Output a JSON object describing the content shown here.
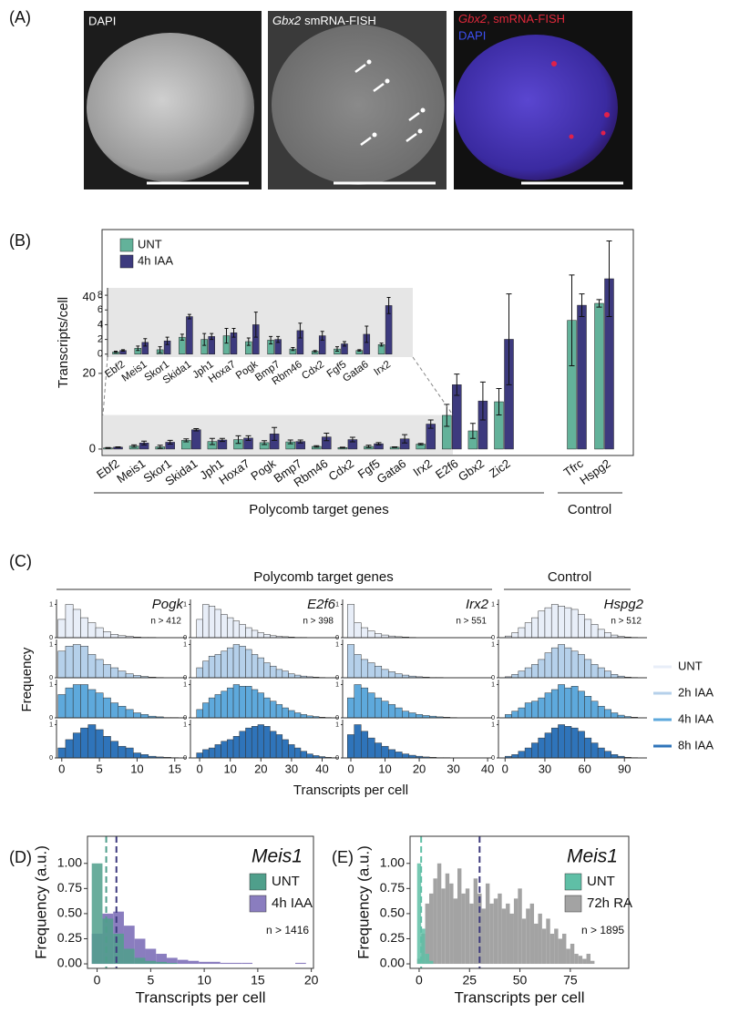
{
  "panel_a": {
    "label": "(A)",
    "images": [
      {
        "caption": "DAPI"
      },
      {
        "gene": "Gbx2",
        "caption": "smRNA-FISH"
      },
      {
        "gene": "Gbx2",
        "caption": ", smRNA-FISH",
        "caption2": "DAPI"
      }
    ]
  },
  "chart_data": [
    {
      "type": "bar",
      "label": "(B)",
      "ylabel": "Transcripts/cell",
      "ylim": [
        -1.7,
        58
      ],
      "yticks": [
        0,
        20,
        40
      ],
      "categories": [
        "Ebf2",
        "Meis1",
        "Skor1",
        "Skida1",
        "Jph1",
        "Hoxa7",
        "Pogk",
        "Bmp7",
        "Rbm46",
        "Cdx2",
        "Fgf5",
        "Gata6",
        "Irx2",
        "E2f6",
        "Gbx2",
        "Zic2",
        "Tfrc",
        "Hspg2"
      ],
      "series": [
        {
          "name": "UNT",
          "color": "#63b29a",
          "values": [
            0.3,
            0.8,
            0.6,
            2.3,
            2.0,
            2.5,
            1.7,
            1.9,
            0.7,
            0.4,
            0.7,
            0.5,
            1.3,
            8.9,
            4.8,
            12.5,
            34,
            38.5
          ],
          "errors": [
            0.1,
            0.3,
            0.4,
            0.4,
            0.8,
            1.0,
            0.5,
            0.5,
            0.2,
            0.1,
            0.3,
            0.1,
            0.2,
            2.9,
            2.0,
            3.5,
            12,
            1
          ]
        },
        {
          "name": "4h IAA",
          "color": "#3d3a7e",
          "values": [
            0.5,
            1.6,
            1.8,
            5.1,
            2.4,
            2.9,
            4.0,
            2.0,
            3.2,
            2.5,
            1.4,
            2.7,
            6.6,
            17.0,
            12.7,
            29,
            38,
            45
          ],
          "errors": [
            0.1,
            0.5,
            0.5,
            0.3,
            0.4,
            0.6,
            1.7,
            0.4,
            1.0,
            0.6,
            0.3,
            1.1,
            1.1,
            2.8,
            5.0,
            12,
            3,
            10
          ]
        }
      ],
      "groups": [
        "Polycomb target genes",
        "Control"
      ],
      "inset": {
        "ylim": [
          -0.4,
          9
        ],
        "yticks": [
          0,
          2,
          4,
          6,
          8
        ],
        "categories": [
          "Ebf2",
          "Meis1",
          "Skor1",
          "Skida1",
          "Jph1",
          "Hoxa7",
          "Pogk",
          "Bmp7",
          "Rbm46",
          "Cdx2",
          "Fgf5",
          "Gata6",
          "Irx2"
        ]
      }
    },
    {
      "type": "histogram-grid",
      "label": "(C)",
      "groups": [
        "Polycomb target genes",
        "Control"
      ],
      "ylabel": "Frequency",
      "xlabel": "Transcripts per cell",
      "ylim": [
        0,
        1.15
      ],
      "yticks": [
        0,
        1
      ],
      "series": [
        {
          "name": "UNT",
          "color": "#e8eef8"
        },
        {
          "name": "2h IAA",
          "color": "#b5d0ea"
        },
        {
          "name": "4h IAA",
          "color": "#5ea9dc"
        },
        {
          "name": "8h IAA",
          "color": "#2f74ba"
        }
      ],
      "panels": [
        {
          "gene": "Pogk",
          "n_label": "n > 412",
          "xlim": [
            -0.7,
            16.6
          ],
          "xticks": [
            0,
            5,
            10,
            15
          ],
          "bins": [
            -0.5,
            0.5,
            1.5,
            2.5,
            3.5,
            4.5,
            5.5,
            6.5,
            7.5,
            8.5,
            9.5,
            10.5,
            11.5,
            12.5,
            13.5,
            14.5,
            15.5
          ],
          "counts": [
            [
              0.55,
              1,
              0.85,
              0.6,
              0.45,
              0.3,
              0.18,
              0.1,
              0.06,
              0.04,
              0.02,
              0.01,
              0.01,
              0,
              0,
              0
            ],
            [
              0.8,
              0.95,
              1,
              0.95,
              0.7,
              0.55,
              0.4,
              0.3,
              0.2,
              0.12,
              0.07,
              0.04,
              0.02,
              0.01,
              0,
              0
            ],
            [
              0.7,
              0.9,
              1,
              1,
              0.85,
              0.75,
              0.6,
              0.45,
              0.35,
              0.25,
              0.15,
              0.1,
              0.05,
              0.03,
              0.01,
              0.01
            ],
            [
              0.3,
              0.55,
              0.75,
              0.9,
              1,
              0.85,
              0.65,
              0.5,
              0.35,
              0.3,
              0.15,
              0.1,
              0.05,
              0.03,
              0.02,
              0.01
            ]
          ]
        },
        {
          "gene": "E2f6",
          "n_label": "n > 398",
          "xlim": [
            -3,
            45.5
          ],
          "xticks": [
            0,
            10,
            20,
            30,
            40
          ],
          "bins": [
            -1,
            1,
            3,
            5,
            7,
            9,
            11,
            13,
            15,
            17,
            19,
            21,
            23,
            25,
            27,
            29,
            31,
            33,
            35,
            37,
            39,
            41,
            43,
            45
          ],
          "counts": [
            [
              0.55,
              1,
              0.95,
              0.85,
              0.7,
              0.6,
              0.5,
              0.4,
              0.3,
              0.22,
              0.15,
              0.1,
              0.06,
              0.04,
              0.03,
              0.02,
              0.01,
              0.01,
              0,
              0,
              0,
              0,
              0
            ],
            [
              0.3,
              0.5,
              0.65,
              0.7,
              0.8,
              0.9,
              1,
              0.95,
              0.85,
              0.7,
              0.6,
              0.45,
              0.35,
              0.25,
              0.2,
              0.12,
              0.08,
              0.05,
              0.03,
              0.02,
              0.01,
              0,
              0
            ],
            [
              0.25,
              0.45,
              0.6,
              0.7,
              0.8,
              0.9,
              1,
              0.95,
              0.95,
              0.85,
              0.75,
              0.6,
              0.5,
              0.4,
              0.3,
              0.22,
              0.15,
              0.1,
              0.06,
              0.04,
              0.02,
              0.01,
              0
            ],
            [
              0.15,
              0.25,
              0.3,
              0.4,
              0.5,
              0.55,
              0.65,
              0.8,
              0.9,
              0.95,
              1,
              0.95,
              0.8,
              0.7,
              0.55,
              0.4,
              0.3,
              0.2,
              0.12,
              0.07,
              0.04,
              0.02,
              0.01
            ]
          ]
        },
        {
          "gene": "Irx2",
          "n_label": "n > 551",
          "xlim": [
            -2.4,
            41.3
          ],
          "xticks": [
            0,
            10,
            20,
            30,
            40
          ],
          "bins": [
            -1,
            1,
            3,
            5,
            7,
            9,
            11,
            13,
            15,
            17,
            19,
            21,
            23,
            25,
            27,
            29,
            31,
            33,
            35,
            37,
            39
          ],
          "counts": [
            [
              1,
              0.45,
              0.3,
              0.2,
              0.12,
              0.08,
              0.05,
              0.03,
              0.02,
              0.01,
              0,
              0,
              0,
              0,
              0,
              0,
              0,
              0,
              0,
              0
            ],
            [
              1,
              0.7,
              0.55,
              0.45,
              0.35,
              0.25,
              0.18,
              0.12,
              0.08,
              0.05,
              0.03,
              0.02,
              0.01,
              0.01,
              0,
              0,
              0,
              0,
              0,
              0
            ],
            [
              0.6,
              1,
              0.9,
              0.75,
              0.6,
              0.5,
              0.4,
              0.3,
              0.2,
              0.15,
              0.1,
              0.07,
              0.05,
              0.03,
              0.02,
              0.01,
              0,
              0,
              0,
              0
            ],
            [
              0.7,
              1,
              0.8,
              0.6,
              0.45,
              0.35,
              0.25,
              0.18,
              0.12,
              0.08,
              0.05,
              0.03,
              0.02,
              0.01,
              0.01,
              0,
              0,
              0,
              0,
              0
            ]
          ]
        },
        {
          "gene": "Hspg2",
          "n_label": "n > 512",
          "xlim": [
            -5,
            107
          ],
          "xticks": [
            0,
            30,
            60,
            90
          ],
          "bins": [
            0,
            5,
            10,
            15,
            20,
            25,
            30,
            35,
            40,
            45,
            50,
            55,
            60,
            65,
            70,
            75,
            80,
            85,
            90,
            95,
            100
          ],
          "counts": [
            [
              0.05,
              0.15,
              0.3,
              0.45,
              0.6,
              0.8,
              0.9,
              1,
              0.95,
              0.9,
              0.85,
              0.7,
              0.55,
              0.4,
              0.25,
              0.15,
              0.08,
              0.04,
              0.02,
              0.01
            ],
            [
              0.03,
              0.1,
              0.2,
              0.3,
              0.4,
              0.55,
              0.75,
              0.9,
              1,
              0.9,
              0.8,
              0.7,
              0.55,
              0.4,
              0.3,
              0.2,
              0.1,
              0.05,
              0.02,
              0.01
            ],
            [
              0.1,
              0.2,
              0.3,
              0.45,
              0.5,
              0.6,
              0.75,
              0.85,
              1,
              0.9,
              0.95,
              0.8,
              0.65,
              0.5,
              0.35,
              0.25,
              0.15,
              0.08,
              0.04,
              0.02
            ],
            [
              0.05,
              0.1,
              0.2,
              0.3,
              0.45,
              0.6,
              0.75,
              0.9,
              1,
              0.95,
              0.9,
              0.8,
              0.6,
              0.45,
              0.3,
              0.2,
              0.1,
              0.05,
              0.02,
              0.01
            ]
          ]
        }
      ]
    },
    {
      "type": "histogram",
      "label": "(D)",
      "gene": "Meis1",
      "n_label": "n > 1416",
      "xlabel": "Transcripts per cell",
      "ylabel": "Frequency (a.u.)",
      "xlim": [
        -0.9,
        20.2
      ],
      "xticks": [
        0,
        5,
        10,
        15,
        20
      ],
      "ylim": [
        -0.045,
        1.27
      ],
      "yticks": [
        {
          "value": 0,
          "label": "0.00"
        },
        {
          "value": 0.25,
          "label": "0.25"
        },
        {
          "value": 0.5,
          "label": "0.50"
        },
        {
          "value": 0.75,
          "label": "0.75"
        },
        {
          "value": 1,
          "label": "1.00"
        }
      ],
      "bins": [
        -0.5,
        0.5,
        1.5,
        2.5,
        3.5,
        4.5,
        5.5,
        6.5,
        7.5,
        8.5,
        9.5,
        10.5,
        11.5,
        12.5,
        13.5,
        14.5,
        15.5,
        16.5,
        17.5,
        18.5,
        19.5
      ],
      "series": [
        {
          "name": "UNT",
          "color": "#4f9f8b",
          "mean": 0.85,
          "values": [
            1,
            0.45,
            0.3,
            0.15,
            0.06,
            0.03,
            0.02,
            0.01,
            0,
            0,
            0,
            0,
            0,
            0,
            0,
            0,
            0,
            0,
            0,
            0
          ]
        },
        {
          "name": "4h IAA",
          "color": "#8a7dbf",
          "mean": 1.8,
          "values": [
            0.3,
            0.5,
            0.52,
            0.38,
            0.25,
            0.15,
            0.1,
            0.06,
            0.04,
            0.03,
            0.02,
            0.02,
            0.01,
            0.01,
            0.01,
            0,
            0,
            0,
            0,
            0.01
          ]
        }
      ]
    },
    {
      "type": "histogram",
      "label": "(E)",
      "gene": "Meis1",
      "n_label": "n > 1895",
      "xlabel": "Transcripts per cell",
      "ylabel": "Frequency (a.u.)",
      "xlim": [
        -4.5,
        104
      ],
      "xticks": [
        0,
        25,
        50,
        75
      ],
      "ylim": [
        -0.045,
        1.27
      ],
      "yticks": [
        {
          "value": 0,
          "label": "0.00"
        },
        {
          "value": 0.25,
          "label": "0.25"
        },
        {
          "value": 0.5,
          "label": "0.50"
        },
        {
          "value": 0.75,
          "label": "0.75"
        },
        {
          "value": 1,
          "label": "1.00"
        }
      ],
      "bins": [
        -1,
        1,
        3,
        5,
        7,
        9,
        11,
        13,
        15,
        17,
        19,
        21,
        23,
        25,
        27,
        29,
        31,
        33,
        35,
        37,
        39,
        41,
        43,
        45,
        47,
        49,
        51,
        53,
        55,
        57,
        59,
        61,
        63,
        65,
        67,
        69,
        71,
        73,
        75,
        77,
        79,
        81,
        83,
        85,
        87
      ],
      "series": [
        {
          "name": "UNT",
          "color": "#5fbfa6",
          "mean": 1,
          "values": [
            1,
            0.35,
            0.1,
            0.03,
            0,
            0,
            0,
            0,
            0,
            0,
            0,
            0,
            0,
            0,
            0,
            0,
            0,
            0,
            0,
            0,
            0,
            0,
            0,
            0,
            0,
            0,
            0,
            0,
            0,
            0,
            0,
            0,
            0,
            0,
            0,
            0,
            0,
            0,
            0,
            0,
            0,
            0,
            0,
            0
          ]
        },
        {
          "name": "72h RA",
          "color": "#a3a3a3",
          "mean": 30,
          "values": [
            0.05,
            0.3,
            0.6,
            0.7,
            0.85,
            1,
            0.75,
            0.9,
            0.8,
            0.65,
            0.95,
            0.7,
            0.75,
            0.6,
            0.85,
            0.7,
            0.55,
            0.8,
            0.6,
            0.65,
            0.7,
            0.55,
            0.6,
            0.5,
            0.65,
            0.75,
            0.45,
            0.55,
            0.6,
            0.4,
            0.5,
            0.35,
            0.45,
            0.3,
            0.35,
            0.25,
            0.3,
            0.15,
            0.2,
            0.1,
            0.08,
            0.05,
            0.1,
            0.03
          ]
        }
      ]
    }
  ]
}
